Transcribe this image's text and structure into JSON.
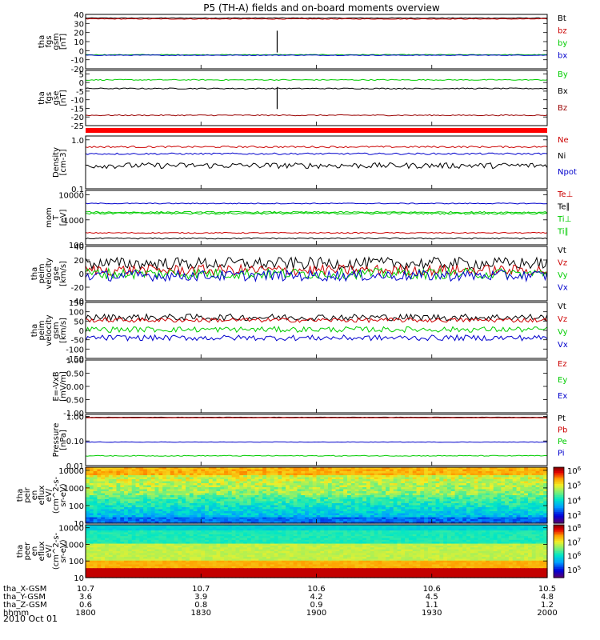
{
  "chart_data": {
    "type": "line",
    "title": "P5 (TH-A) fields and on-board moments overview",
    "time_ticks": [
      "1800",
      "1830",
      "1900",
      "1930",
      "2000"
    ],
    "panels": [
      {
        "name": "fgs-gsm",
        "ylabel": [
          "tha",
          "fgs",
          "gsm",
          "[nT]"
        ],
        "ylim": [
          -20,
          40
        ],
        "scale": "linear",
        "ticks": [
          -20,
          -10,
          0,
          10,
          20,
          30,
          40
        ],
        "series": [
          {
            "name": "Bt",
            "color": "#000000",
            "level": 36,
            "noise": 0.4
          },
          {
            "name": "bz",
            "color": "#cc0000",
            "level": 35,
            "noise": 0.4
          },
          {
            "name": "by",
            "color": "#00cc00",
            "level": -4.5,
            "noise": 0.4
          },
          {
            "name": "bx",
            "color": "#0000cc",
            "level": -5,
            "noise": 0.4
          }
        ]
      },
      {
        "name": "fgs-gse",
        "ylabel": [
          "tha",
          "fgs",
          "gse",
          "[nT]"
        ],
        "ylim": [
          -25,
          7
        ],
        "scale": "linear",
        "ticks": [
          -25,
          -20,
          -15,
          -10,
          -5,
          0,
          5
        ],
        "series": [
          {
            "name": "By",
            "color": "#00cc00",
            "level": 1.5,
            "noise": 0.3
          },
          {
            "name": "Bx",
            "color": "#000000",
            "level": -3.5,
            "noise": 0.3
          },
          {
            "name": "Bz",
            "color": "#990000",
            "level": -19,
            "noise": 0.3
          }
        ]
      },
      {
        "name": "density",
        "ylabel": [
          "Density",
          "[cm-3]"
        ],
        "ylim": [
          0.1,
          1.2
        ],
        "scale": "log",
        "ticks": [
          0.1,
          1.0
        ],
        "ticklabels": [
          "0.1",
          "1.0"
        ],
        "series": [
          {
            "name": "Ne",
            "color": "#cc0000",
            "level": 0.72,
            "noise": 0.03
          },
          {
            "name": "Ni",
            "color": "#000000",
            "level": 0.3,
            "noise": 0.04
          },
          {
            "name": "Npot",
            "color": "#0000cc",
            "level": 0.52,
            "noise": 0.02
          }
        ]
      },
      {
        "name": "temperature",
        "ylabel": [
          "mom",
          "T",
          "[eV]"
        ],
        "ylim": [
          100,
          15000
        ],
        "scale": "log",
        "ticks": [
          100,
          1000,
          10000
        ],
        "ticklabels": [
          "100",
          "1000",
          "10000"
        ],
        "series": [
          {
            "name": "Te⊥",
            "color": "#cc0000",
            "level": 300,
            "noise": 15
          },
          {
            "name": "Te∥",
            "color": "#000000",
            "level": 180,
            "noise": 10
          },
          {
            "name": "Ti⊥",
            "color": "#00cc00",
            "level": 2000,
            "noise": 150
          },
          {
            "name": "Ti∥",
            "color": "#00cc00",
            "level": 1800,
            "noise": 150
          },
          {
            "name": "",
            "color": "#0000cc",
            "level": 4500,
            "noise": 200
          }
        ]
      },
      {
        "name": "velocity-gse",
        "ylabel": [
          "tha",
          "peim",
          "velocity",
          "gse",
          "[km/s]"
        ],
        "ylim": [
          -40,
          40
        ],
        "scale": "linear",
        "ticks": [
          -40,
          -20,
          0,
          20,
          40
        ],
        "series": [
          {
            "name": "Vt",
            "color": "#000000",
            "level": 15,
            "noise": 9
          },
          {
            "name": "Vz",
            "color": "#cc0000",
            "level": 5,
            "noise": 8
          },
          {
            "name": "Vy",
            "color": "#00cc00",
            "level": 0,
            "noise": 8
          },
          {
            "name": "Vx",
            "color": "#0000cc",
            "level": -3,
            "noise": 8
          }
        ]
      },
      {
        "name": "velocity-gsm",
        "ylabel": [
          "tha",
          "peim",
          "velocity",
          "gsm",
          "[km/s]"
        ],
        "ylim": [
          -150,
          150
        ],
        "scale": "linear",
        "ticks": [
          -150,
          -100,
          -50,
          0,
          50,
          100,
          150
        ],
        "series": [
          {
            "name": "Vt",
            "color": "#000000",
            "level": 70,
            "noise": 18
          },
          {
            "name": "Vz",
            "color": "#cc0000",
            "level": 55,
            "noise": 12
          },
          {
            "name": "Vy",
            "color": "#00cc00",
            "level": 5,
            "noise": 15
          },
          {
            "name": "Vx",
            "color": "#0000cc",
            "level": -40,
            "noise": 15
          }
        ]
      },
      {
        "name": "efield",
        "ylabel": [
          "E=-VxB",
          "[mV/m]"
        ],
        "ylim": [
          -1,
          1
        ],
        "scale": "linear",
        "ticks": [
          -1,
          -0.5,
          0,
          0.5,
          1
        ],
        "ticklabels": [
          "-1.00",
          "-0.50",
          "0.00",
          "0.50",
          "1.00"
        ],
        "series": [
          {
            "name": "Ez",
            "color": "#cc0000",
            "level": null,
            "noise": 0
          },
          {
            "name": "Ey",
            "color": "#00cc00",
            "level": null,
            "noise": 0
          },
          {
            "name": "Ex",
            "color": "#0000cc",
            "level": null,
            "noise": 0
          }
        ]
      },
      {
        "name": "pressure",
        "ylabel": [
          "Pressure",
          "[nPa]"
        ],
        "ylim": [
          0.01,
          1.2
        ],
        "scale": "log",
        "ticks": [
          0.01,
          0.1,
          1.0
        ],
        "ticklabels": [
          "0.01",
          "0.10",
          "1.00"
        ],
        "series": [
          {
            "name": "Pt",
            "color": "#000000",
            "level": 0.92,
            "noise": 0.01
          },
          {
            "name": "Pb",
            "color": "#cc0000",
            "level": 0.88,
            "noise": 0.01
          },
          {
            "name": "Pe",
            "color": "#00cc00",
            "level": 0.025,
            "noise": 0.001
          },
          {
            "name": "Pi",
            "color": "#0000cc",
            "level": 0.09,
            "noise": 0.002
          }
        ]
      },
      {
        "name": "ion-spectrogram",
        "type": "heatmap",
        "ylabel": [
          "tha",
          "peir",
          "en",
          "eflux",
          "eV/",
          "(cm^2-s-",
          "sr-eV)"
        ],
        "ylim": [
          10,
          15000
        ],
        "scale": "log",
        "ticks": [
          10,
          100,
          1000,
          10000
        ],
        "ticklabels": [
          "10",
          "100",
          "1000",
          "10000"
        ],
        "colorbar": {
          "labels": [
            "10^6",
            "10^5",
            "10^4",
            "10^3"
          ]
        }
      },
      {
        "name": "electron-spectrogram",
        "type": "heatmap",
        "ylabel": [
          "tha",
          "peer",
          "en",
          "eflux",
          "eV/",
          "(cm^2-s-",
          "sr-eV)"
        ],
        "ylim": [
          10,
          15000
        ],
        "scale": "log",
        "ticks": [
          10,
          100,
          1000,
          10000
        ],
        "ticklabels": [
          "10",
          "100",
          "1000",
          "10000"
        ],
        "colorbar": {
          "labels": [
            "10^8",
            "10^7",
            "10^6",
            "10^5"
          ]
        }
      }
    ],
    "ephemeris": [
      {
        "label": "tha_X-GSM",
        "values": [
          "10.7",
          "10.7",
          "10.6",
          "10.6",
          "10.5"
        ]
      },
      {
        "label": "tha_Y-GSM",
        "values": [
          "3.6",
          "3.9",
          "4.2",
          "4.5",
          "4.8"
        ]
      },
      {
        "label": "tha_Z-GSM",
        "values": [
          "0.6",
          "0.8",
          "0.9",
          "1.1",
          "1.2"
        ]
      },
      {
        "label": "hhmm",
        "values": [
          "1800",
          "1830",
          "1900",
          "1930",
          "2000"
        ]
      }
    ],
    "date": "2010 Oct 01"
  }
}
